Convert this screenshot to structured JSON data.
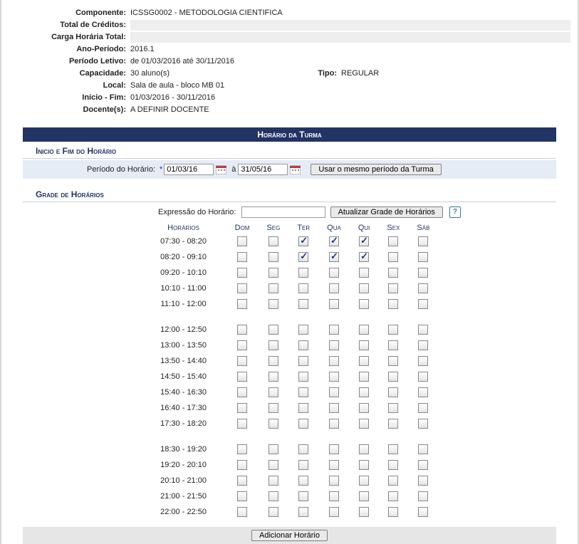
{
  "info": {
    "componente_label": "Componente:",
    "componente_value": "ICSSG0002 - METODOLOGIA CIENTIFICA",
    "creditos_label": "Total de Créditos:",
    "carga_label": "Carga Horária Total:",
    "anoper_label": "Ano-Período:",
    "anoper_value": "2016.1",
    "periodo_letivo_label": "Período Letivo:",
    "periodo_letivo_value": "de 01/03/2016 até 30/11/2016",
    "capacidade_label": "Capacidade:",
    "capacidade_value": "30 aluno(s)",
    "tipo_label": "Tipo:",
    "tipo_value": "REGULAR",
    "local_label": "Local:",
    "local_value": "Sala de aula - bloco MB 01",
    "iniciofim_label": "Início - Fim:",
    "iniciofim_value": "01/03/2016 - 30/11/2016",
    "docentes_label": "Docente(s):",
    "docentes_value": "A DEFINIR DOCENTE"
  },
  "bar_title": "Horário da Turma",
  "sec_inicio": {
    "title": "Inicio e Fim do Horário",
    "periodo_label": "Período do Horário:",
    "data_inicio": "01/03/16",
    "a": "à",
    "data_fim": "31/05/16",
    "btn_usar": "Usar o mesmo período da Turma"
  },
  "sec_grade": {
    "title": "Grade de Horários",
    "expr_label": "Expressão do Horário:",
    "expr_value": "",
    "btn_atualizar": "Atualizar Grade de Horários",
    "help": "?",
    "headers": [
      "Horários",
      "Dom",
      "Seg",
      "Ter",
      "Qua",
      "Qui",
      "Sex",
      "Sáb"
    ],
    "groups": [
      [
        {
          "label": "07:30 - 08:20",
          "checks": [
            false,
            false,
            true,
            true,
            true,
            false,
            false
          ]
        },
        {
          "label": "08:20 - 09:10",
          "checks": [
            false,
            false,
            true,
            true,
            true,
            false,
            false
          ]
        },
        {
          "label": "09:20 - 10:10",
          "checks": [
            false,
            false,
            false,
            false,
            false,
            false,
            false
          ]
        },
        {
          "label": "10:10 - 11:00",
          "checks": [
            false,
            false,
            false,
            false,
            false,
            false,
            false
          ]
        },
        {
          "label": "11:10 - 12:00",
          "checks": [
            false,
            false,
            false,
            false,
            false,
            false,
            false
          ]
        }
      ],
      [
        {
          "label": "12:00 - 12:50",
          "checks": [
            false,
            false,
            false,
            false,
            false,
            false,
            false
          ]
        },
        {
          "label": "13:00 - 13:50",
          "checks": [
            false,
            false,
            false,
            false,
            false,
            false,
            false
          ]
        },
        {
          "label": "13:50 - 14:40",
          "checks": [
            false,
            false,
            false,
            false,
            false,
            false,
            false
          ]
        },
        {
          "label": "14:50 - 15:40",
          "checks": [
            false,
            false,
            false,
            false,
            false,
            false,
            false
          ]
        },
        {
          "label": "15:40 - 16:30",
          "checks": [
            false,
            false,
            false,
            false,
            false,
            false,
            false
          ]
        },
        {
          "label": "16:40 - 17:30",
          "checks": [
            false,
            false,
            false,
            false,
            false,
            false,
            false
          ]
        },
        {
          "label": "17:30 - 18:20",
          "checks": [
            false,
            false,
            false,
            false,
            false,
            false,
            false
          ]
        }
      ],
      [
        {
          "label": "18:30 - 19:20",
          "checks": [
            false,
            false,
            false,
            false,
            false,
            false,
            false
          ]
        },
        {
          "label": "19:20 - 20:10",
          "checks": [
            false,
            false,
            false,
            false,
            false,
            false,
            false
          ]
        },
        {
          "label": "20:10 - 21:00",
          "checks": [
            false,
            false,
            false,
            false,
            false,
            false,
            false
          ]
        },
        {
          "label": "21:00 - 21:50",
          "checks": [
            false,
            false,
            false,
            false,
            false,
            false,
            false
          ]
        },
        {
          "label": "22:00 - 22:50",
          "checks": [
            false,
            false,
            false,
            false,
            false,
            false,
            false
          ]
        }
      ]
    ],
    "btn_adicionar": "Adicionar Horário"
  }
}
